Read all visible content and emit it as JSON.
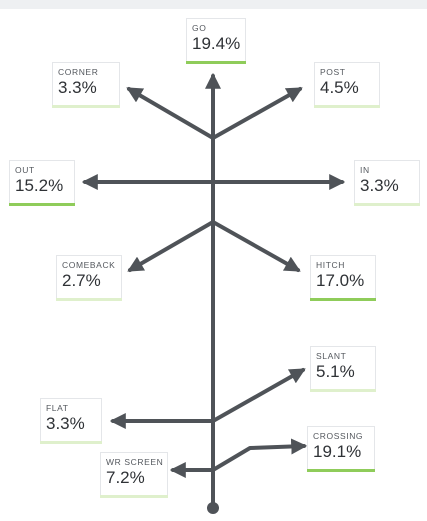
{
  "colors": {
    "route_line": "#4f5358",
    "bar_strong": "#8fcc5a",
    "bar_light": "#dff0cc",
    "card_border": "#e4e6e9",
    "top_band": "#eef0f2"
  },
  "routes": [
    {
      "id": "go",
      "name": "GO",
      "value": "19.4%",
      "bar": "strong"
    },
    {
      "id": "corner",
      "name": "CORNER",
      "value": "3.3%",
      "bar": "light"
    },
    {
      "id": "post",
      "name": "POST",
      "value": "4.5%",
      "bar": "light"
    },
    {
      "id": "out",
      "name": "OUT",
      "value": "15.2%",
      "bar": "strong"
    },
    {
      "id": "in",
      "name": "IN",
      "value": "3.3%",
      "bar": "light"
    },
    {
      "id": "comeback",
      "name": "COMEBACK",
      "value": "2.7%",
      "bar": "light"
    },
    {
      "id": "hitch",
      "name": "HITCH",
      "value": "17.0%",
      "bar": "strong"
    },
    {
      "id": "slant",
      "name": "SLANT",
      "value": "5.1%",
      "bar": "light"
    },
    {
      "id": "flat",
      "name": "FLAT",
      "value": "3.3%",
      "bar": "light"
    },
    {
      "id": "crossing",
      "name": "CROSSING",
      "value": "19.1%",
      "bar": "strong"
    },
    {
      "id": "wr-screen",
      "name": "WR SCREEN",
      "value": "7.2%",
      "bar": "light"
    }
  ]
}
